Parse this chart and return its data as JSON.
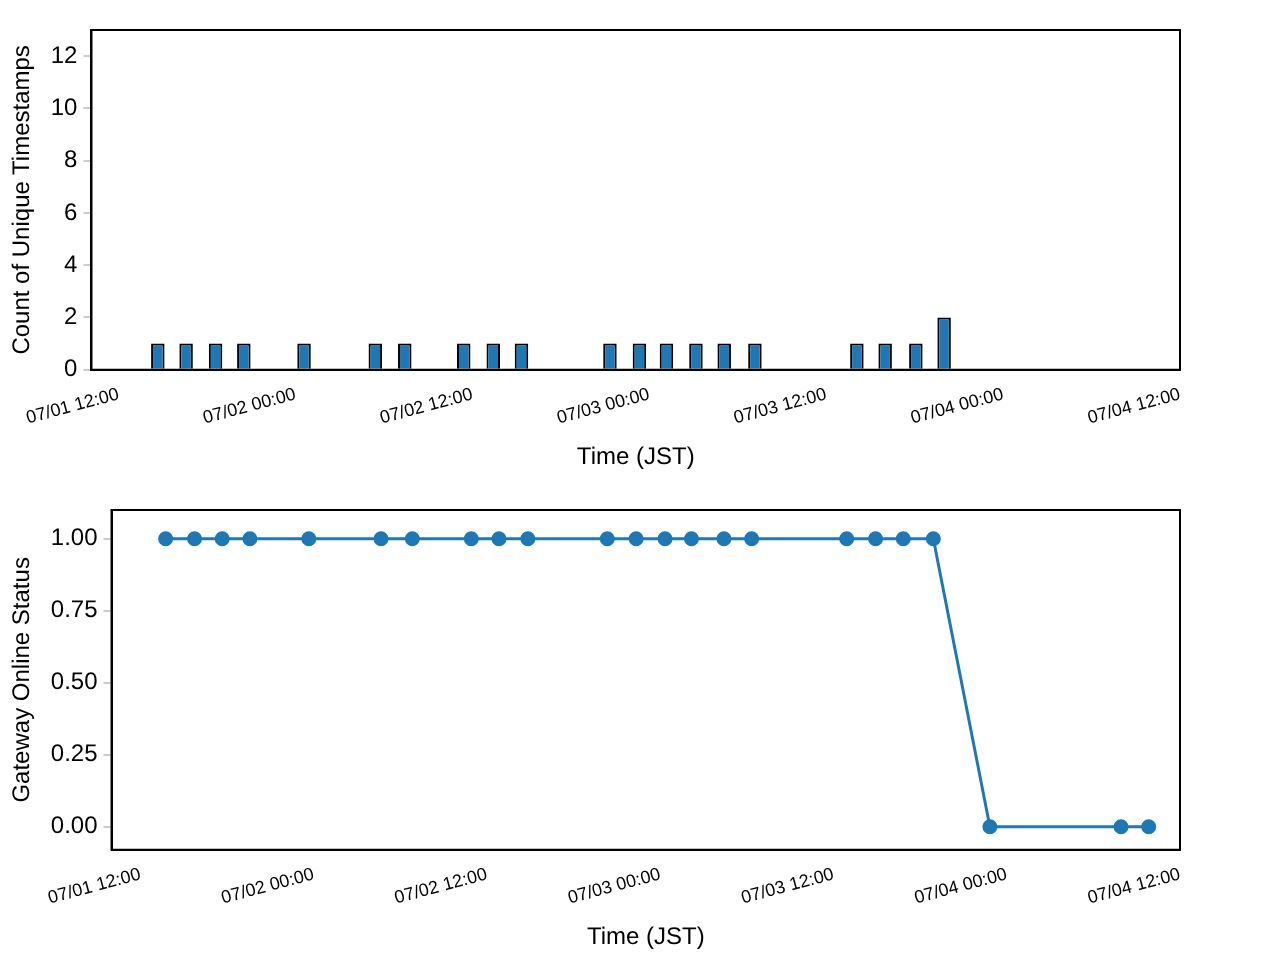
{
  "chart_data": [
    {
      "type": "bar",
      "xlabel": "Time (JST)",
      "ylabel": "Count of Unique Timestamps",
      "x": [
        "--07-01T14:40",
        "--07-01T16:35",
        "--07-01T18:35",
        "--07-01T20:30",
        "--07-02T00:35",
        "--07-02T05:25",
        "--07-02T07:25",
        "--07-02T11:25",
        "--07-02T13:25",
        "--07-02T15:20",
        "--07-02T21:20",
        "--07-02T23:20",
        "--07-03T01:10",
        "--07-03T03:10",
        "--07-03T05:05",
        "--07-03T07:10",
        "--07-03T14:05",
        "--07-03T16:00",
        "--07-03T18:05",
        "--07-03T20:00"
      ],
      "values": [
        1,
        1,
        1,
        1,
        1,
        1,
        1,
        1,
        1,
        1,
        1,
        1,
        1,
        1,
        1,
        1,
        1,
        1,
        1,
        2
      ],
      "color": "#1f77b4",
      "xlim": [
        "--07-01T10:10",
        "--07-04T12:00"
      ],
      "xticks": [
        {
          "value": "--07-01T12:00",
          "label": "07/01 12:00"
        },
        {
          "value": "--07-02T00:00",
          "label": "07/02 00:00"
        },
        {
          "value": "--07-02T12:00",
          "label": "07/02 12:00"
        },
        {
          "value": "--07-03T00:00",
          "label": "07/03 00:00"
        },
        {
          "value": "--07-03T12:00",
          "label": "07/03 12:00"
        },
        {
          "value": "--07-04T00:00",
          "label": "07/04 00:00"
        },
        {
          "value": "--07-04T12:00",
          "label": "07/04 12:00"
        }
      ],
      "ylim": [
        0,
        13
      ],
      "yticks": [
        0,
        2,
        4,
        6,
        8,
        10,
        12
      ]
    },
    {
      "type": "line",
      "xlabel": "Time (JST)",
      "ylabel": "Gateway Online Status",
      "x": [
        "--07-01T13:45",
        "--07-01T15:45",
        "--07-01T17:40",
        "--07-01T19:35",
        "--07-01T23:40",
        "--07-02T04:40",
        "--07-02T06:50",
        "--07-02T10:55",
        "--07-02T12:50",
        "--07-02T14:50",
        "--07-02T20:20",
        "--07-02T22:20",
        "--07-03T00:20",
        "--07-03T02:10",
        "--07-03T04:25",
        "--07-03T06:20",
        "--07-03T12:55",
        "--07-03T14:55",
        "--07-03T16:50",
        "--07-03T18:55",
        "--07-03T22:50",
        "--07-04T07:55",
        "--07-04T09:50"
      ],
      "values": [
        1,
        1,
        1,
        1,
        1,
        1,
        1,
        1,
        1,
        1,
        1,
        1,
        1,
        1,
        1,
        1,
        1,
        1,
        1,
        1,
        0,
        0,
        0
      ],
      "color": "#1f77b4",
      "marker": "circle",
      "line_style": "solid",
      "xlim": [
        "--07-01T10:00",
        "--07-04T12:00"
      ],
      "xticks": [
        {
          "value": "--07-01T12:00",
          "label": "07/01 12:00"
        },
        {
          "value": "--07-02T00:00",
          "label": "07/02 00:00"
        },
        {
          "value": "--07-02T12:00",
          "label": "07/02 12:00"
        },
        {
          "value": "--07-03T00:00",
          "label": "07/03 00:00"
        },
        {
          "value": "--07-03T12:00",
          "label": "07/03 12:00"
        },
        {
          "value": "--07-04T00:00",
          "label": "07/04 00:00"
        },
        {
          "value": "--07-04T12:00",
          "label": "07/04 12:00"
        }
      ],
      "ylim": [
        -0.08,
        1.1
      ],
      "yticks": [
        {
          "value": 0,
          "label": "0.00"
        },
        {
          "value": 0.25,
          "label": "0.25"
        },
        {
          "value": 0.5,
          "label": "0.50"
        },
        {
          "value": 0.75,
          "label": "0.75"
        },
        {
          "value": 1,
          "label": "1.00"
        }
      ]
    }
  ]
}
